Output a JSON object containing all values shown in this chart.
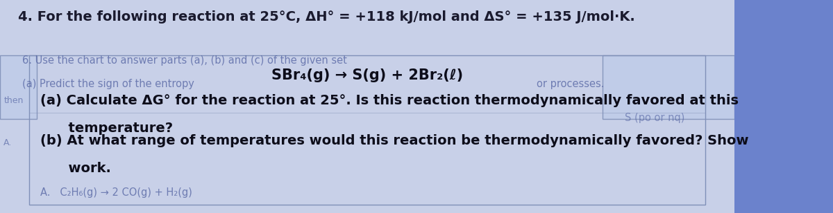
{
  "background_color": "#6b82cc",
  "white_bg_color": "#c8d0e8",
  "title_line": "4. For the following reaction at 25°C, ΔH° = +118 kJ/mol and ΔS° = +135 J/mol·K.",
  "reaction_line": "SBr₄(g) → S(g) + 2Br₂(ℓ)",
  "faded_line1": "6. Use the chart to answer parts (a), (b) and (c) of the given set",
  "faded_line2": "(a) Predict the sign of the entropy",
  "part_a_line1": "(a) Calculate ΔG° for the reaction at 25°. Is this reaction thermodynamically favored at this",
  "part_a_line2": "      temperature?",
  "part_b_line1": "(b) At what range of temperatures would this reaction be thermodynamically favored? Show",
  "part_b_line2": "      work.",
  "faded_bottom": "A.   C₂H₆(g) → 2 CO(g) + H₂(g)",
  "faded_right": "S (po or nq)",
  "faded_left_a": "then",
  "faded_left_b": "A.",
  "title_fontsize": 14,
  "reaction_fontsize": 15,
  "body_fontsize": 14,
  "faded_fontsize": 10.5,
  "title_color": "#1a1a2e",
  "body_color": "#0d0d1a",
  "faded_color": "#5060a0",
  "reaction_color": "#0d0d1a",
  "box_facecolor": "#b8c4e0",
  "box_edgecolor": "#8090b8",
  "inner_box_facecolor": "#c0cce8",
  "inner_box_edgecolor": "#9090c0"
}
